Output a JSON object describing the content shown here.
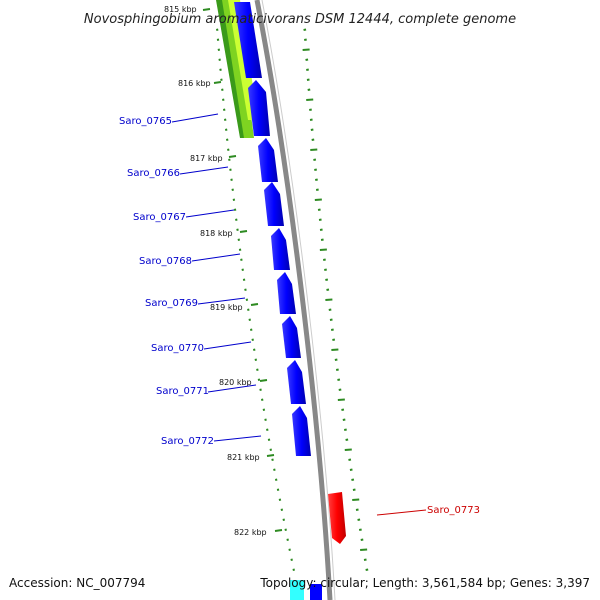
{
  "title": "Novosphingobium aromaticivorans DSM 12444, complete genome",
  "footer": {
    "accession": "Accession: NC_007794",
    "summary": "Topology: circular; Length: 3,561,584 bp; Genes: 3,397"
  },
  "kbp_labels": [
    "815 kbp",
    "816 kbp",
    "817 kbp",
    "818 kbp",
    "819 kbp",
    "820 kbp",
    "821 kbp",
    "822 kbp"
  ],
  "genes": [
    {
      "name": "Saro_0765",
      "strand": "forward",
      "color": "#0000ff"
    },
    {
      "name": "Saro_0766",
      "strand": "forward",
      "color": "#0000ff"
    },
    {
      "name": "Saro_0767",
      "strand": "forward",
      "color": "#0000ff"
    },
    {
      "name": "Saro_0768",
      "strand": "forward",
      "color": "#0000ff"
    },
    {
      "name": "Saro_0769",
      "strand": "forward",
      "color": "#0000ff"
    },
    {
      "name": "Saro_0770",
      "strand": "forward",
      "color": "#0000ff"
    },
    {
      "name": "Saro_0771",
      "strand": "forward",
      "color": "#0000ff"
    },
    {
      "name": "Saro_0772",
      "strand": "forward",
      "color": "#0000ff"
    },
    {
      "name": "Saro_0773",
      "strand": "reverse",
      "color": "#ff0000"
    }
  ],
  "colors": {
    "cds_forward": "#0000ff",
    "cds_reverse": "#ff0000",
    "gc_skew": "#2e8b22",
    "backbone": "#888888",
    "gc_content_dark": "#3a9a1a",
    "gc_content_light": "#ccff33",
    "cyan_feature": "#33ffff"
  }
}
